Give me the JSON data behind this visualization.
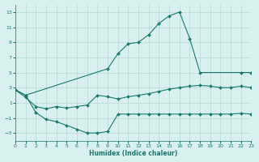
{
  "xlabel": "Humidex (Indice chaleur)",
  "curve1_x": [
    0,
    1,
    9,
    10,
    11,
    12,
    13,
    14,
    15,
    16,
    17,
    18,
    22,
    23
  ],
  "curve1_y": [
    2.7,
    2.0,
    5.5,
    7.5,
    8.8,
    9.0,
    10.0,
    11.5,
    12.5,
    13.0,
    9.5,
    5.0,
    5.0,
    5.0
  ],
  "curve2_x": [
    0,
    1,
    2,
    3,
    4,
    5,
    6,
    7,
    8,
    9,
    10,
    11,
    12,
    13,
    14,
    15,
    16,
    17,
    18,
    19,
    20,
    21,
    22,
    23
  ],
  "curve2_y": [
    2.7,
    2.0,
    -0.3,
    -1.2,
    -1.5,
    -2.0,
    -2.5,
    -3.0,
    -3.0,
    -2.8,
    -0.5,
    -0.5,
    -0.5,
    -0.5,
    -0.5,
    -0.5,
    -0.5,
    -0.5,
    -0.5,
    -0.5,
    -0.5,
    -0.5,
    -0.4,
    -0.5
  ],
  "curve3_x": [
    0,
    1,
    2,
    3,
    4,
    5,
    6,
    7,
    8,
    9,
    10,
    11,
    12,
    13,
    14,
    15,
    16,
    17,
    18,
    19,
    20,
    21,
    22,
    23
  ],
  "curve3_y": [
    2.7,
    1.7,
    0.5,
    0.2,
    0.5,
    0.3,
    0.5,
    0.7,
    2.0,
    1.8,
    1.5,
    1.8,
    2.0,
    2.2,
    2.5,
    2.8,
    3.0,
    3.2,
    3.3,
    3.2,
    3.0,
    3.0,
    3.2,
    3.0
  ],
  "line_color": "#1a7a6e",
  "bg_color": "#d8f0ee",
  "grid_color": "#b8d8d4",
  "ylim": [
    -4,
    14
  ],
  "xlim": [
    0,
    23
  ],
  "yticks": [
    -3,
    -1,
    1,
    3,
    5,
    7,
    9,
    11,
    13
  ],
  "xticks": [
    0,
    1,
    2,
    3,
    4,
    5,
    6,
    7,
    8,
    9,
    10,
    11,
    12,
    13,
    14,
    15,
    16,
    17,
    18,
    19,
    20,
    21,
    22,
    23
  ]
}
